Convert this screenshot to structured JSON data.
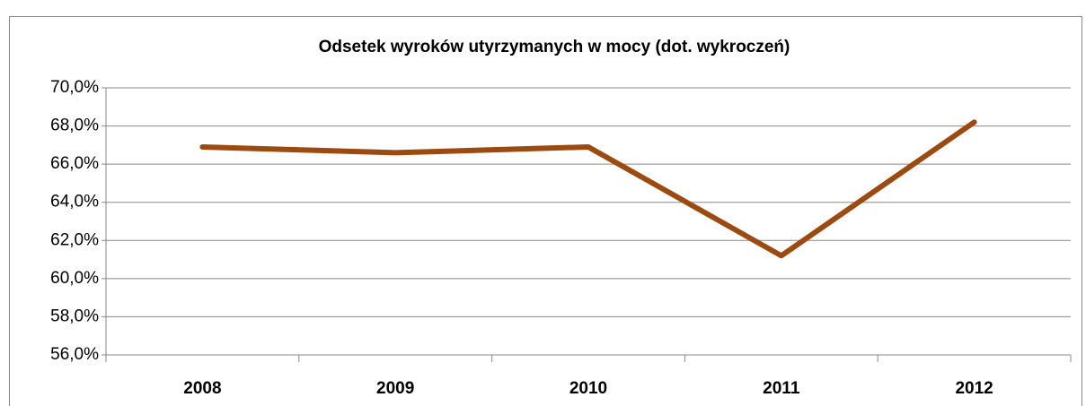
{
  "chart_data": {
    "type": "line",
    "title": "Odsetek wyroków utyrzymanych w mocy (dot. wykroczeń)",
    "categories": [
      "2008",
      "2009",
      "2010",
      "2011",
      "2012"
    ],
    "series": [
      {
        "name": "Odsetek",
        "color": "#9c4a10",
        "values": [
          66.9,
          66.6,
          66.9,
          61.2,
          68.2
        ]
      }
    ],
    "ylim": [
      56,
      70
    ],
    "yticks": [
      {
        "value": 56,
        "label": "56,0%"
      },
      {
        "value": 58,
        "label": "58,0%"
      },
      {
        "value": 60,
        "label": "60,0%"
      },
      {
        "value": 62,
        "label": "62,0%"
      },
      {
        "value": 64,
        "label": "64,0%"
      },
      {
        "value": 66,
        "label": "66,0%"
      },
      {
        "value": 68,
        "label": "68,0%"
      },
      {
        "value": 70,
        "label": "70,0%"
      }
    ],
    "grid": true
  }
}
